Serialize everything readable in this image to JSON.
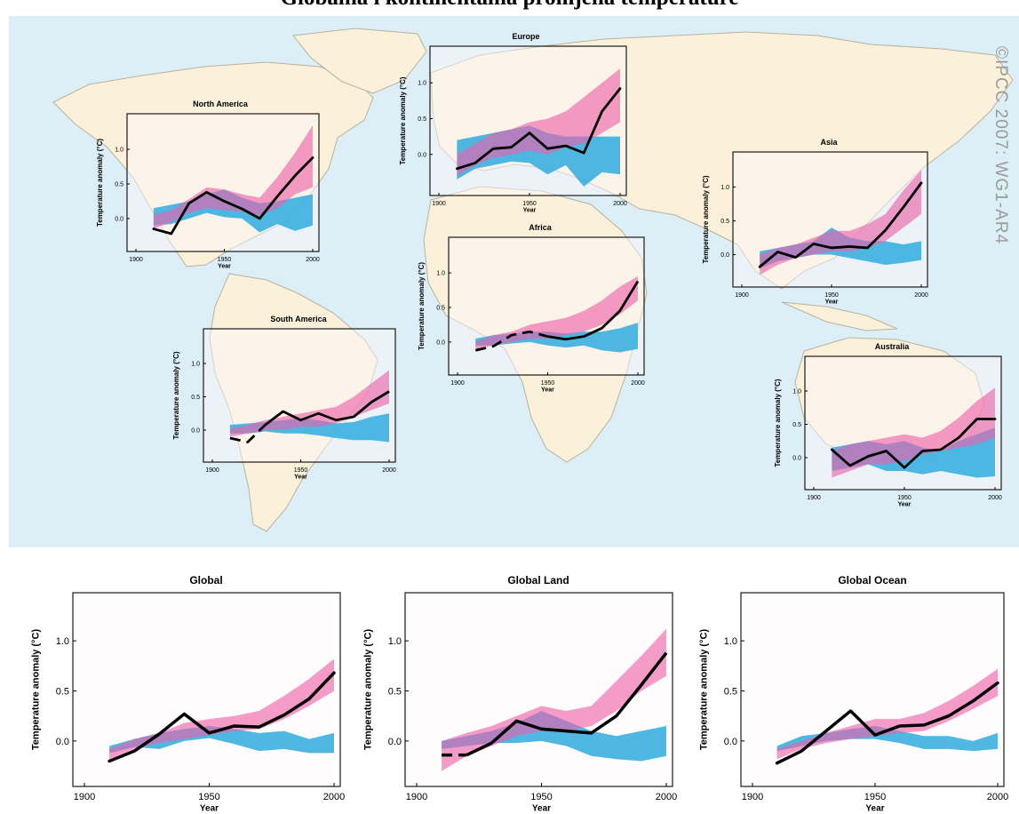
{
  "page": {
    "title": "Globalna i kontinentalna promjena temperature",
    "watermark": "©IPCC 2007: WG1-AR4"
  },
  "colors": {
    "natural": "#3bb0e0",
    "combined": "#ee5fa8",
    "overlap": "#7a55ac",
    "observed": "#000000",
    "ocean": "#dceef6",
    "land": "#fbf1da",
    "panel": "#fdf8fa"
  },
  "chart_data": [
    {
      "id": "north-america",
      "type": "line",
      "title": "North America",
      "xlabel": "Year",
      "ylabel": "Temperature anomaly (°C)",
      "xlim": [
        1900,
        2000
      ],
      "ylim": [
        -0.4,
        1.4
      ],
      "xticks": [
        "1900",
        "1950",
        "2000"
      ],
      "yticks": [
        "0.0",
        "0.5",
        "1.0"
      ],
      "x": [
        1910,
        1920,
        1930,
        1940,
        1950,
        1960,
        1970,
        1980,
        1990,
        2000
      ],
      "observed": [
        -0.15,
        -0.22,
        0.22,
        0.38,
        0.25,
        0.14,
        0.0,
        0.32,
        0.62,
        0.88
      ],
      "observed_dashed_until": null,
      "natural_band": {
        "low": [
          -0.1,
          -0.08,
          0.0,
          0.08,
          0.02,
          0.0,
          -0.2,
          -0.08,
          -0.18,
          -0.1
        ],
        "high": [
          0.15,
          0.2,
          0.25,
          0.35,
          0.42,
          0.3,
          0.22,
          0.25,
          0.3,
          0.35
        ]
      },
      "combined_band": {
        "low": [
          -0.15,
          -0.05,
          0.08,
          0.15,
          0.12,
          0.1,
          0.05,
          0.15,
          0.35,
          0.45
        ],
        "high": [
          0.05,
          0.12,
          0.28,
          0.45,
          0.42,
          0.35,
          0.3,
          0.6,
          0.95,
          1.35
        ]
      }
    },
    {
      "id": "europe",
      "type": "line",
      "title": "Europe",
      "xlabel": "Year",
      "ylabel": "Temperature anomaly (°C)",
      "xlim": [
        1900,
        2000
      ],
      "ylim": [
        -0.5,
        1.4
      ],
      "xticks": [
        "1900",
        "1950",
        "2000"
      ],
      "yticks": [
        "0.0",
        "0.5",
        "1.0"
      ],
      "x": [
        1910,
        1920,
        1930,
        1940,
        1950,
        1960,
        1970,
        1980,
        1990,
        2000
      ],
      "observed": [
        -0.2,
        -0.12,
        0.08,
        0.1,
        0.3,
        0.08,
        0.12,
        0.02,
        0.6,
        0.92
      ],
      "observed_dashed_until": null,
      "natural_band": {
        "low": [
          -0.35,
          -0.2,
          -0.15,
          -0.1,
          -0.12,
          -0.28,
          -0.15,
          -0.45,
          -0.25,
          -0.28
        ],
        "high": [
          0.2,
          0.25,
          0.3,
          0.35,
          0.4,
          0.3,
          0.25,
          0.25,
          0.25,
          0.25
        ]
      },
      "combined_band": {
        "low": [
          -0.3,
          -0.15,
          -0.05,
          0.0,
          0.05,
          0.0,
          0.1,
          0.15,
          0.3,
          0.45
        ],
        "high": [
          0.0,
          0.15,
          0.3,
          0.35,
          0.45,
          0.5,
          0.6,
          0.8,
          1.0,
          1.2
        ]
      }
    },
    {
      "id": "asia",
      "type": "line",
      "title": "Asia",
      "xlabel": "Year",
      "ylabel": "Temperature anomaly (°C)",
      "xlim": [
        1900,
        2000
      ],
      "ylim": [
        -0.4,
        1.4
      ],
      "xticks": [
        "1900",
        "1950",
        "2000"
      ],
      "yticks": [
        "0.0",
        "0.5",
        "1.0"
      ],
      "x": [
        1910,
        1920,
        1930,
        1940,
        1950,
        1960,
        1970,
        1980,
        1990,
        2000
      ],
      "observed": [
        -0.18,
        0.04,
        -0.04,
        0.16,
        0.1,
        0.12,
        0.1,
        0.36,
        0.7,
        1.06
      ],
      "observed_dashed_until": null,
      "natural_band": {
        "low": [
          -0.2,
          -0.1,
          -0.05,
          0.0,
          0.0,
          -0.05,
          -0.1,
          -0.15,
          -0.12,
          -0.08
        ],
        "high": [
          0.05,
          0.1,
          0.15,
          0.2,
          0.4,
          0.25,
          0.2,
          0.2,
          0.15,
          0.2
        ]
      },
      "combined_band": {
        "low": [
          -0.3,
          -0.15,
          -0.05,
          0.0,
          0.05,
          0.05,
          0.1,
          0.2,
          0.4,
          0.6
        ],
        "high": [
          0.0,
          0.1,
          0.15,
          0.25,
          0.35,
          0.35,
          0.45,
          0.6,
          0.95,
          1.25
        ]
      }
    },
    {
      "id": "africa",
      "type": "line",
      "title": "Africa",
      "xlabel": "Year",
      "ylabel": "Temperature anomaly (°C)",
      "xlim": [
        1900,
        2000
      ],
      "ylim": [
        -0.4,
        1.4
      ],
      "xticks": [
        "1900",
        "1950",
        "2000"
      ],
      "yticks": [
        "0.0",
        "0.5",
        "1.0"
      ],
      "x": [
        1910,
        1920,
        1930,
        1940,
        1950,
        1960,
        1970,
        1980,
        1990,
        2000
      ],
      "observed": [
        -0.12,
        -0.06,
        0.1,
        0.15,
        0.08,
        0.04,
        0.08,
        0.2,
        0.45,
        0.88
      ],
      "observed_dashed_until": 1950,
      "natural_band": {
        "low": [
          -0.05,
          -0.05,
          -0.02,
          0.0,
          -0.05,
          -0.08,
          -0.05,
          -0.12,
          -0.15,
          -0.1
        ],
        "high": [
          0.05,
          0.1,
          0.12,
          0.15,
          0.15,
          0.12,
          0.15,
          0.15,
          0.2,
          0.28
        ]
      },
      "combined_band": {
        "low": [
          -0.1,
          -0.05,
          0.0,
          0.05,
          0.05,
          0.1,
          0.15,
          0.25,
          0.4,
          0.6
        ],
        "high": [
          0.0,
          0.1,
          0.15,
          0.25,
          0.3,
          0.35,
          0.45,
          0.6,
          0.8,
          0.95
        ]
      }
    },
    {
      "id": "south-america",
      "type": "line",
      "title": "South America",
      "xlabel": "Year",
      "ylabel": "Temperature anomaly (°C)",
      "xlim": [
        1900,
        2000
      ],
      "ylim": [
        -0.4,
        1.4
      ],
      "xticks": [
        "1900",
        "1950",
        "2000"
      ],
      "yticks": [
        "0.0",
        "0.5",
        "1.0"
      ],
      "x": [
        1910,
        1920,
        1930,
        1940,
        1950,
        1960,
        1970,
        1980,
        1990,
        2000
      ],
      "observed": [
        -0.12,
        -0.18,
        0.08,
        0.28,
        0.15,
        0.25,
        0.15,
        0.2,
        0.42,
        0.58
      ],
      "observed_dashed_until": 1930,
      "natural_band": {
        "low": [
          -0.05,
          -0.05,
          -0.02,
          -0.05,
          -0.05,
          -0.08,
          -0.12,
          -0.15,
          -0.15,
          -0.18
        ],
        "high": [
          0.08,
          0.1,
          0.12,
          0.15,
          0.18,
          0.15,
          0.1,
          0.12,
          0.2,
          0.25
        ]
      },
      "combined_band": {
        "low": [
          -0.1,
          -0.05,
          0.0,
          0.0,
          0.05,
          0.05,
          0.1,
          0.2,
          0.3,
          0.4
        ],
        "high": [
          0.02,
          0.08,
          0.15,
          0.2,
          0.25,
          0.3,
          0.35,
          0.5,
          0.7,
          0.9
        ]
      }
    },
    {
      "id": "australia",
      "type": "line",
      "title": "Australia",
      "xlabel": "Year",
      "ylabel": "Temperature anomaly (°C)",
      "xlim": [
        1900,
        2000
      ],
      "ylim": [
        -0.4,
        1.4
      ],
      "xticks": [
        "1900",
        "1950",
        "2000"
      ],
      "yticks": [
        "0.0",
        "0.5",
        "1.0"
      ],
      "x": [
        1910,
        1920,
        1930,
        1940,
        1950,
        1960,
        1970,
        1980,
        1990,
        2000
      ],
      "observed": [
        0.12,
        -0.12,
        0.02,
        0.1,
        -0.15,
        0.1,
        0.12,
        0.3,
        0.58,
        0.58
      ],
      "observed_dashed_until": null,
      "natural_band": {
        "low": [
          -0.2,
          -0.15,
          -0.1,
          -0.2,
          -0.2,
          -0.25,
          -0.2,
          -0.25,
          -0.3,
          -0.28
        ],
        "high": [
          0.15,
          0.2,
          0.25,
          0.2,
          0.25,
          0.15,
          0.1,
          0.25,
          0.35,
          0.45
        ]
      },
      "combined_band": {
        "low": [
          -0.3,
          -0.2,
          -0.1,
          -0.1,
          -0.05,
          0.05,
          0.1,
          0.15,
          0.2,
          0.3
        ],
        "high": [
          0.1,
          0.2,
          0.25,
          0.3,
          0.35,
          0.3,
          0.4,
          0.6,
          0.85,
          1.05
        ]
      }
    },
    {
      "id": "global",
      "type": "line",
      "title": "Global",
      "xlabel": "Year",
      "ylabel": "Temperature anomaly (°C)",
      "xlim": [
        1900,
        2000
      ],
      "ylim": [
        -0.4,
        1.4
      ],
      "xticks": [
        "1900",
        "1950",
        "2000"
      ],
      "yticks": [
        "0.0",
        "0.5",
        "1.0"
      ],
      "x": [
        1910,
        1920,
        1930,
        1940,
        1950,
        1960,
        1970,
        1980,
        1990,
        2000
      ],
      "observed": [
        -0.2,
        -0.1,
        0.07,
        0.27,
        0.08,
        0.15,
        0.14,
        0.26,
        0.42,
        0.68
      ],
      "observed_dashed_until": null,
      "natural_band": {
        "low": [
          -0.12,
          -0.06,
          -0.08,
          0.0,
          0.03,
          -0.03,
          -0.1,
          -0.08,
          -0.12,
          -0.12
        ],
        "high": [
          -0.05,
          0.02,
          0.08,
          0.12,
          0.15,
          0.12,
          0.08,
          0.1,
          0.02,
          0.08
        ]
      },
      "combined_band": {
        "low": [
          -0.18,
          -0.08,
          -0.02,
          0.02,
          0.06,
          0.1,
          0.12,
          0.22,
          0.35,
          0.5
        ],
        "high": [
          -0.08,
          0.02,
          0.08,
          0.18,
          0.22,
          0.25,
          0.3,
          0.45,
          0.62,
          0.82
        ]
      }
    },
    {
      "id": "global-land",
      "type": "line",
      "title": "Global Land",
      "xlabel": "Year",
      "ylabel": "Temperature anomaly (°C)",
      "xlim": [
        1900,
        2000
      ],
      "ylim": [
        -0.4,
        1.4
      ],
      "xticks": [
        "1900",
        "1950",
        "2000"
      ],
      "yticks": [
        "0.0",
        "0.5",
        "1.0"
      ],
      "x": [
        1910,
        1920,
        1930,
        1940,
        1950,
        1960,
        1970,
        1980,
        1990,
        2000
      ],
      "observed": [
        -0.14,
        -0.14,
        -0.02,
        0.2,
        0.12,
        0.1,
        0.08,
        0.25,
        0.56,
        0.88
      ],
      "observed_dashed_until": 1920,
      "natural_band": {
        "low": [
          -0.08,
          -0.05,
          -0.02,
          -0.02,
          0.0,
          -0.05,
          -0.15,
          -0.18,
          -0.2,
          -0.15
        ],
        "high": [
          0.0,
          0.05,
          0.1,
          0.18,
          0.3,
          0.2,
          0.1,
          0.05,
          0.1,
          0.15
        ]
      },
      "combined_band": {
        "low": [
          -0.3,
          -0.15,
          -0.05,
          0.05,
          0.1,
          0.1,
          0.15,
          0.3,
          0.5,
          0.65
        ],
        "high": [
          0.0,
          0.08,
          0.15,
          0.25,
          0.35,
          0.3,
          0.35,
          0.6,
          0.85,
          1.12
        ]
      }
    },
    {
      "id": "global-ocean",
      "type": "line",
      "title": "Global Ocean",
      "xlabel": "Year",
      "ylabel": "Temperature anomaly (°C)",
      "xlim": [
        1900,
        2000
      ],
      "ylim": [
        -0.4,
        1.4
      ],
      "xticks": [
        "1900",
        "1950",
        "2000"
      ],
      "yticks": [
        "0.0",
        "0.5",
        "1.0"
      ],
      "x": [
        1910,
        1920,
        1930,
        1940,
        1950,
        1960,
        1970,
        1980,
        1990,
        2000
      ],
      "observed": [
        -0.22,
        -0.1,
        0.1,
        0.3,
        0.06,
        0.15,
        0.16,
        0.25,
        0.4,
        0.58
      ],
      "observed_dashed_until": null,
      "natural_band": {
        "low": [
          -0.1,
          -0.05,
          0.0,
          0.02,
          0.02,
          -0.02,
          -0.08,
          -0.08,
          -0.1,
          -0.08
        ],
        "high": [
          -0.05,
          0.05,
          0.08,
          0.12,
          0.15,
          0.1,
          0.05,
          0.05,
          0.0,
          0.08
        ]
      },
      "combined_band": {
        "low": [
          -0.18,
          -0.08,
          -0.02,
          0.02,
          0.05,
          0.08,
          0.1,
          0.2,
          0.32,
          0.45
        ],
        "high": [
          -0.08,
          0.0,
          0.08,
          0.15,
          0.22,
          0.22,
          0.28,
          0.4,
          0.55,
          0.72
        ]
      }
    }
  ]
}
